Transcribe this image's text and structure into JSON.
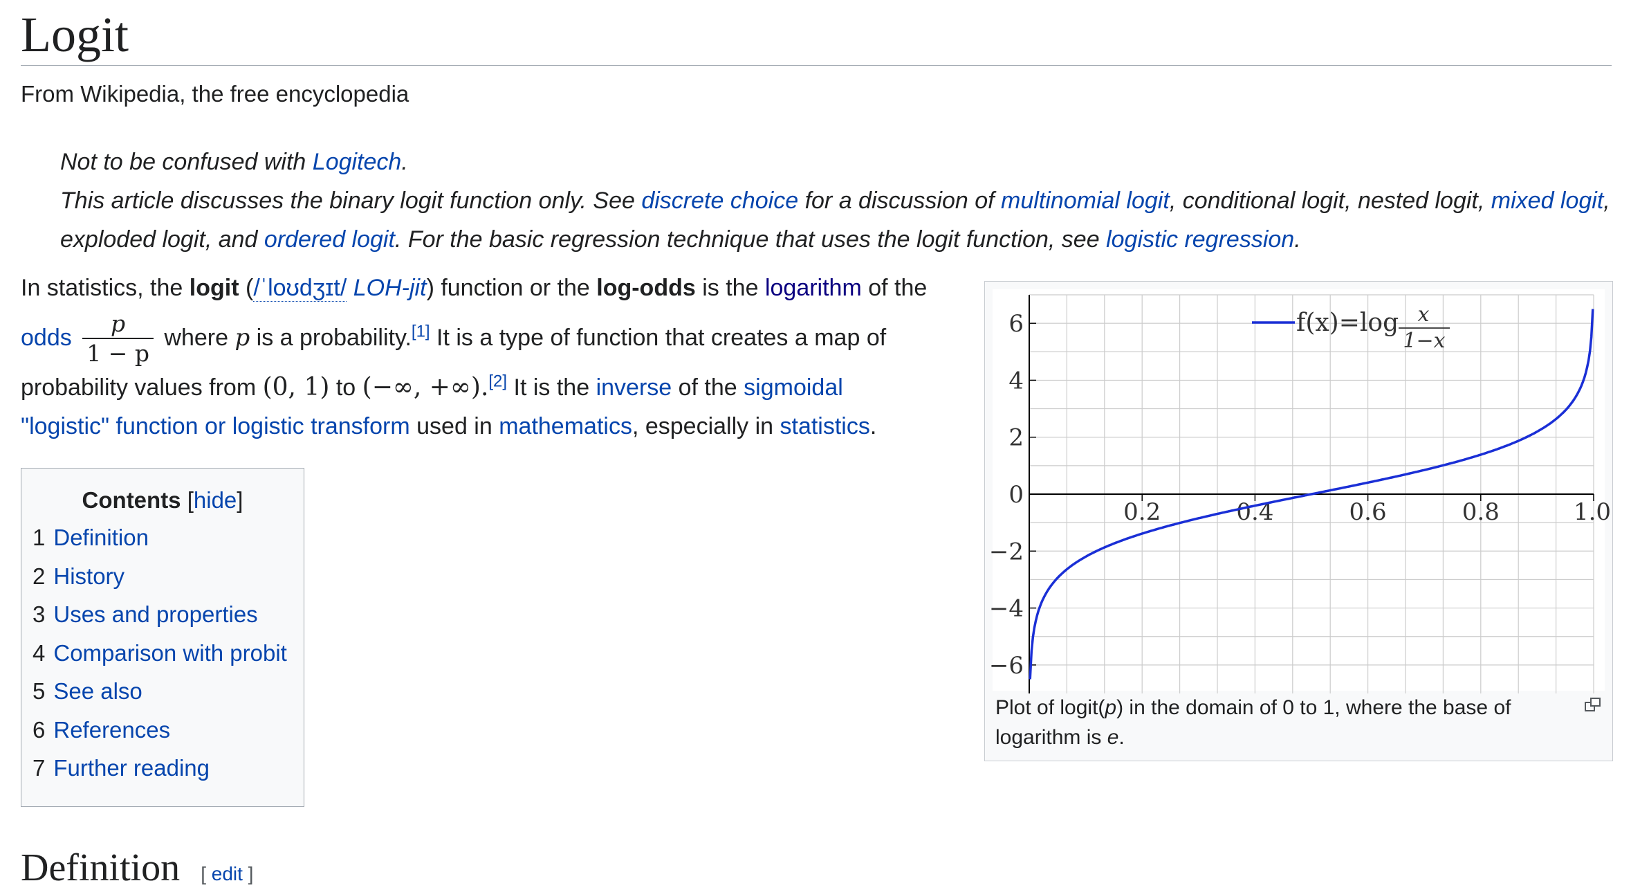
{
  "article": {
    "title": "Logit",
    "tagline": "From Wikipedia, the free encyclopedia"
  },
  "hatnote": {
    "line1_prefix": "Not to be confused with ",
    "line1_link": "Logitech",
    "line1_suffix": ".",
    "line2_a": "This article discusses the binary logit function only. See ",
    "line2_link_discrete": "discrete choice",
    "line2_b": " for a discussion of ",
    "line2_link_multinomial": "multinomial logit",
    "line2_c": ", conditional logit, nested logit, ",
    "line2_link_mixed": "mixed logit",
    "line2_d": ", exploded logit, and ",
    "line2_link_ordered": "ordered logit",
    "line2_e": ". For the basic regression technique that uses the logit function, see ",
    "line2_link_logreg": "logistic regression",
    "line2_f": "."
  },
  "lead": {
    "t1": "In statistics, the ",
    "bold_logit": "logit",
    "t2": " (",
    "ipa": "/ˈloʊdʒɪt/",
    "respell": "LOH-jit",
    "t3": ") function or the ",
    "bold_logodds": "log-odds",
    "t4": " is the ",
    "link_logarithm": "logarithm",
    "t5": " of the",
    "link_odds": "odds",
    "frac_num": "p",
    "frac_den": "1 − p",
    "t6": " where ",
    "var_p": "p",
    "t7": " is a probability.",
    "ref1": "[1]",
    "t8": " It is a type of function that creates a map of",
    "t9": "probability values from ",
    "math_domain": "(0, 1)",
    "t10": " to ",
    "math_range": "(−∞, +∞).",
    "ref2": "[2]",
    "t11": " It is the ",
    "link_inverse": "inverse",
    "t12": " of the ",
    "link_sigmoidal": "sigmoidal",
    "link_logistic": "\"logistic\" function or logistic transform",
    "t13": " used in ",
    "link_mathematics": "mathematics",
    "t14": ", especially in ",
    "link_statistics": "statistics",
    "t15": "."
  },
  "toc": {
    "title": "Contents",
    "hide_open": "[",
    "hide": "hide",
    "hide_close": "]",
    "items": [
      {
        "num": "1",
        "label": "Definition"
      },
      {
        "num": "2",
        "label": "History"
      },
      {
        "num": "3",
        "label": "Uses and properties"
      },
      {
        "num": "4",
        "label": "Comparison with probit"
      },
      {
        "num": "5",
        "label": "See also"
      },
      {
        "num": "6",
        "label": "References"
      },
      {
        "num": "7",
        "label": "Further reading"
      }
    ]
  },
  "figure": {
    "caption_a": "Plot of logit(",
    "caption_p": "p",
    "caption_b": ") in the domain of 0 to 1, where the base of logarithm is ",
    "caption_e": "e",
    "caption_c": ".",
    "icon": "magnify-icon"
  },
  "chart_data": {
    "type": "line",
    "x_ticks": [
      "0.2",
      "0.4",
      "0.6",
      "0.8",
      "1.0"
    ],
    "y_ticks": [
      "6",
      "4",
      "2",
      "0",
      "−2",
      "−4",
      "−6"
    ],
    "xlim": [
      0,
      1
    ],
    "ylim": [
      -7,
      7
    ],
    "grid": true,
    "legend_position": "top-center",
    "legend": "f(x)=log x/(1−x)",
    "series": [
      {
        "name": "f(x)=log x/(1−x)",
        "color": "#1a2fd6",
        "x": [
          0.0015,
          0.005,
          0.01,
          0.02,
          0.05,
          0.1,
          0.2,
          0.3,
          0.4,
          0.5,
          0.6,
          0.7,
          0.8,
          0.9,
          0.95,
          0.98,
          0.99,
          0.995,
          0.9985
        ],
        "y": [
          -6.5,
          -5.29,
          -4.6,
          -3.89,
          -2.94,
          -2.2,
          -1.39,
          -0.85,
          -0.41,
          0.0,
          0.41,
          0.85,
          1.39,
          2.2,
          2.94,
          3.89,
          4.6,
          5.29,
          6.5
        ]
      }
    ]
  },
  "section": {
    "heading": "Definition",
    "edit_open": "[ ",
    "edit": "edit",
    "edit_close": " ]"
  }
}
